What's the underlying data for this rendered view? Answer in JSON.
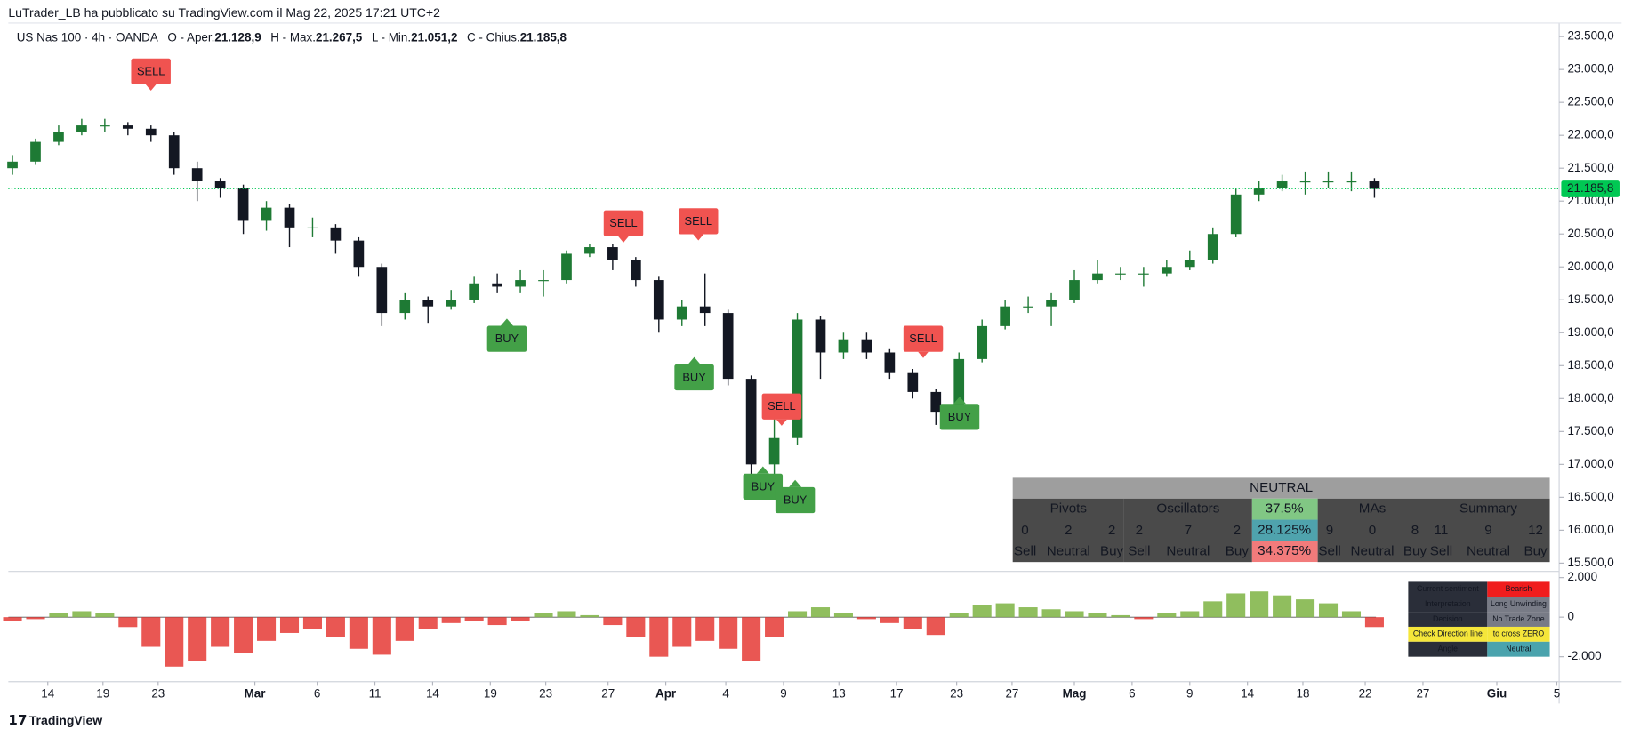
{
  "header": {
    "byline": "LuTrader_LB ha pubblicato su TradingView.com il Mag 22, 2025 17:21 UTC+2",
    "symbol": "US Nas 100 · 4h · OANDA",
    "ohlc": [
      {
        "label": "O - Aper.",
        "value": "21.128,9"
      },
      {
        "label": "H - Max.",
        "value": "21.267,5"
      },
      {
        "label": "L - Min.",
        "value": "21.051,2"
      },
      {
        "label": "C - Chius.",
        "value": "21.185,8"
      }
    ]
  },
  "chart_data": [
    {
      "type": "candlestick",
      "up_color": "#1e7a34",
      "down_color": "#131722",
      "open": [
        21500,
        21600,
        21900,
        22050,
        22150,
        22150,
        22100,
        22000,
        21500,
        21300,
        21200,
        20700,
        20900,
        20600,
        20600,
        20400,
        20000,
        19300,
        19500,
        19400,
        19500,
        19750,
        19700,
        19800,
        19800,
        20200,
        20300,
        20100,
        19800,
        19200,
        19400,
        19300,
        18300,
        17000,
        17400,
        19200,
        18700,
        18900,
        18700,
        18400,
        18100,
        17800,
        18600,
        19100,
        19400,
        19400,
        19500,
        19800,
        19900,
        19900,
        19900,
        20000,
        20100,
        20500,
        21100,
        21200,
        21300,
        21300,
        21300,
        21300
      ],
      "high": [
        21700,
        21950,
        22150,
        22250,
        22250,
        22200,
        22150,
        22050,
        21600,
        21350,
        21250,
        21000,
        20950,
        20750,
        20650,
        20450,
        20050,
        19600,
        19550,
        19650,
        19850,
        19900,
        19950,
        19950,
        20250,
        20350,
        20350,
        20150,
        19850,
        19500,
        19900,
        19350,
        18350,
        17900,
        19300,
        19250,
        19000,
        19000,
        18750,
        18450,
        18150,
        18700,
        19200,
        19500,
        19550,
        19600,
        19950,
        20100,
        20000,
        20000,
        20100,
        20250,
        20600,
        21200,
        21300,
        21400,
        21450,
        21450,
        21450,
        21350
      ],
      "low": [
        21400,
        21550,
        21850,
        22000,
        22050,
        22000,
        21900,
        21400,
        21000,
        21050,
        20500,
        20550,
        20300,
        20450,
        20200,
        19850,
        19100,
        19200,
        19150,
        19350,
        19450,
        19600,
        19600,
        19550,
        19750,
        20150,
        19950,
        19700,
        19000,
        19100,
        19100,
        18200,
        16500,
        16600,
        17300,
        18300,
        18600,
        18600,
        18300,
        18000,
        17600,
        17750,
        18550,
        19050,
        19300,
        19100,
        19450,
        19750,
        19800,
        19700,
        19850,
        19950,
        20050,
        20450,
        21000,
        21150,
        21100,
        21200,
        21150,
        21050
      ],
      "close": [
        21600,
        21900,
        22050,
        22150,
        22150,
        22100,
        22000,
        21500,
        21300,
        21200,
        20700,
        20900,
        20600,
        20600,
        20400,
        20000,
        19300,
        19500,
        19400,
        19500,
        19750,
        19700,
        19800,
        19800,
        20200,
        20300,
        20100,
        19800,
        19200,
        19400,
        19300,
        18300,
        17000,
        17400,
        19200,
        18700,
        18900,
        18700,
        18400,
        18100,
        17800,
        18600,
        19100,
        19400,
        19400,
        19500,
        19800,
        19900,
        19900,
        19900,
        20000,
        20100,
        20500,
        21100,
        21200,
        21300,
        21300,
        21300,
        21300,
        21186
      ],
      "ylim": [
        15390,
        23705
      ],
      "yticks": [
        {
          "value": 15500,
          "label": "15.500,0"
        },
        {
          "value": 16000,
          "label": "16.000,0"
        },
        {
          "value": 16500,
          "label": "16.500,0"
        },
        {
          "value": 17000,
          "label": "17.000,0"
        },
        {
          "value": 17500,
          "label": "17.500,0"
        },
        {
          "value": 18000,
          "label": "18.000,0"
        },
        {
          "value": 18500,
          "label": "18.500,0"
        },
        {
          "value": 19000,
          "label": "19.000,0"
        },
        {
          "value": 19500,
          "label": "19.500,0"
        },
        {
          "value": 20000,
          "label": "20.000,0"
        },
        {
          "value": 20500,
          "label": "20.500,0"
        },
        {
          "value": 21000,
          "label": "21.000,0"
        },
        {
          "value": 21500,
          "label": "21.500,0"
        },
        {
          "value": 22000,
          "label": "22.000,0"
        },
        {
          "value": 22500,
          "label": "22.500,0"
        },
        {
          "value": 23000,
          "label": "23.000,0"
        },
        {
          "value": 23500,
          "label": "23.500,0"
        }
      ],
      "xlim": [
        -0.18,
        67.0
      ],
      "xticks": [
        {
          "value": 1.53,
          "label": "14"
        },
        {
          "value": 3.92,
          "label": "19"
        },
        {
          "value": 6.31,
          "label": "23"
        },
        {
          "value": 10.5,
          "label": "Mar"
        },
        {
          "value": 13.2,
          "label": "6"
        },
        {
          "value": 15.7,
          "label": "11"
        },
        {
          "value": 18.2,
          "label": "14"
        },
        {
          "value": 20.7,
          "label": "19"
        },
        {
          "value": 23.1,
          "label": "23"
        },
        {
          "value": 25.8,
          "label": "27"
        },
        {
          "value": 28.3,
          "label": "Apr"
        },
        {
          "value": 30.9,
          "label": "4"
        },
        {
          "value": 33.4,
          "label": "9"
        },
        {
          "value": 35.8,
          "label": "13"
        },
        {
          "value": 38.3,
          "label": "17"
        },
        {
          "value": 40.9,
          "label": "23"
        },
        {
          "value": 43.3,
          "label": "27"
        },
        {
          "value": 46.0,
          "label": "Mag"
        },
        {
          "value": 48.5,
          "label": "6"
        },
        {
          "value": 51.0,
          "label": "9"
        },
        {
          "value": 53.5,
          "label": "14"
        },
        {
          "value": 55.9,
          "label": "18"
        },
        {
          "value": 58.6,
          "label": "22"
        },
        {
          "value": 61.1,
          "label": "27"
        },
        {
          "value": 64.3,
          "label": "Giu"
        },
        {
          "value": 66.9,
          "label": "5"
        }
      ],
      "last_price": {
        "value": 21185.8,
        "label": "21.185,8"
      },
      "last_price_color": "#00c853"
    },
    {
      "type": "bar",
      "pos_color": "#7cb342",
      "neg_color": "#e53935",
      "values": [
        -200,
        -100,
        200,
        300,
        200,
        -500,
        -1500,
        -2500,
        -2200,
        -1500,
        -1800,
        -1200,
        -800,
        -600,
        -1000,
        -1600,
        -1900,
        -1200,
        -600,
        -300,
        -200,
        -400,
        -200,
        200,
        300,
        100,
        -400,
        -1000,
        -2000,
        -1500,
        -1200,
        -1600,
        -2200,
        -1000,
        300,
        500,
        200,
        -100,
        -300,
        -600,
        -900,
        200,
        600,
        700,
        500,
        400,
        300,
        200,
        100,
        -100,
        200,
        300,
        800,
        1200,
        1300,
        1100,
        900,
        700,
        300,
        -500
      ],
      "ylim": [
        -3000,
        2260
      ],
      "yticks": [
        {
          "value": 2000,
          "label": "2.000"
        },
        0,
        {
          "value": -2000,
          "label": "-2.000"
        }
      ]
    }
  ],
  "signals": [
    {
      "label": "SELL"
    },
    {
      "label": "SELL"
    },
    {
      "label": "SELL"
    },
    {
      "label": "SELL"
    },
    {
      "label": "SELL"
    },
    {
      "label": "BUY"
    },
    {
      "label": "BUY"
    },
    {
      "label": "BUY"
    },
    {
      "label": "BUY"
    },
    {
      "label": "BUY"
    }
  ],
  "summary_table": {
    "title": "NEUTRAL",
    "groups": [
      {
        "name": "Pivots",
        "counts": [
          0,
          2,
          2
        ],
        "labels": [
          "Sell",
          "Neutral",
          "Buy"
        ]
      },
      {
        "name": "Oscillators",
        "counts": [
          2,
          7,
          2
        ],
        "labels": [
          "Sell",
          "Neutral",
          "Buy"
        ]
      },
      {
        "name": "MAs",
        "counts": [
          9,
          0,
          8
        ],
        "labels": [
          "Sell",
          "Neutral",
          "Buy"
        ]
      },
      {
        "name": "Summary",
        "counts": [
          11,
          9,
          12
        ],
        "labels": [
          "Sell",
          "Neutral",
          "Buy"
        ]
      }
    ],
    "percents": [
      "37.5%",
      "28.125%",
      "34.375%"
    ]
  },
  "sentiment_table": [
    [
      "Current sentiment",
      "Bearish"
    ],
    [
      "Interpretation",
      "Long Unwinding"
    ],
    [
      "Decision",
      "No Trade Zone"
    ],
    [
      "Check Direction line",
      "to cross ZERO"
    ],
    [
      "Angle",
      "Neutral"
    ]
  ],
  "footer": {
    "brand": "TradingView"
  }
}
